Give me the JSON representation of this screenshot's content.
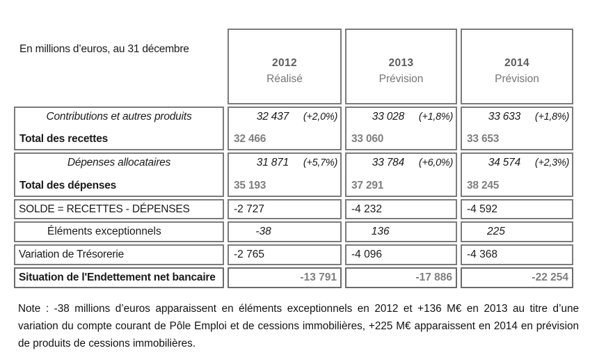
{
  "table": {
    "unit_label": "En millions d’euros, au 31 décembre",
    "columns": [
      {
        "year": "2012",
        "type": "Réalisé"
      },
      {
        "year": "2013",
        "type": "Prévision"
      },
      {
        "year": "2014",
        "type": "Prévision"
      }
    ],
    "rows": [
      {
        "label_italic": "Contributions et autres produits",
        "label_bold": "Total des recettes",
        "cells": [
          {
            "value": "32 437",
            "pct": "(+2,0%)",
            "total": "32 466"
          },
          {
            "value": "33 028",
            "pct": "(+1,8%)",
            "total": "33 060"
          },
          {
            "value": "33 633",
            "pct": "(+1,8%)",
            "total": "33 653"
          }
        ]
      },
      {
        "label_italic": "Dépenses allocataires",
        "label_bold": "Total des dépenses",
        "cells": [
          {
            "value": "31 871",
            "pct": "(+5,7%)",
            "total": "35 193"
          },
          {
            "value": "33 784",
            "pct": "(+6,0%)",
            "total": "37 291"
          },
          {
            "value": "34 574",
            "pct": "(+2,3%)",
            "total": "38 245"
          }
        ]
      },
      {
        "label": "SOLDE = RECETTES - DÉPENSES",
        "values": [
          "-2 727",
          "-4 232",
          "-4 592"
        ]
      },
      {
        "label": "Éléments exceptionnels",
        "values": [
          "-38",
          "136",
          "225"
        ]
      },
      {
        "label": "Variation de Trésorerie",
        "values": [
          "-2 765",
          "-4 096",
          "-4 368"
        ]
      },
      {
        "label": "Situation de l'Endettement net bancaire",
        "values": [
          "-13 791",
          "-17 886",
          "-22 254"
        ]
      }
    ]
  },
  "note": "Note : -38 millions d’euros apparaissent en éléments exceptionnels en 2012 et +136 M€ en 2013 au titre d’une variation du compte courant de Pôle Emploi et de cessions immobilières, +225 M€ apparaissent en 2014 en prévision de produits de cessions immobilières."
}
